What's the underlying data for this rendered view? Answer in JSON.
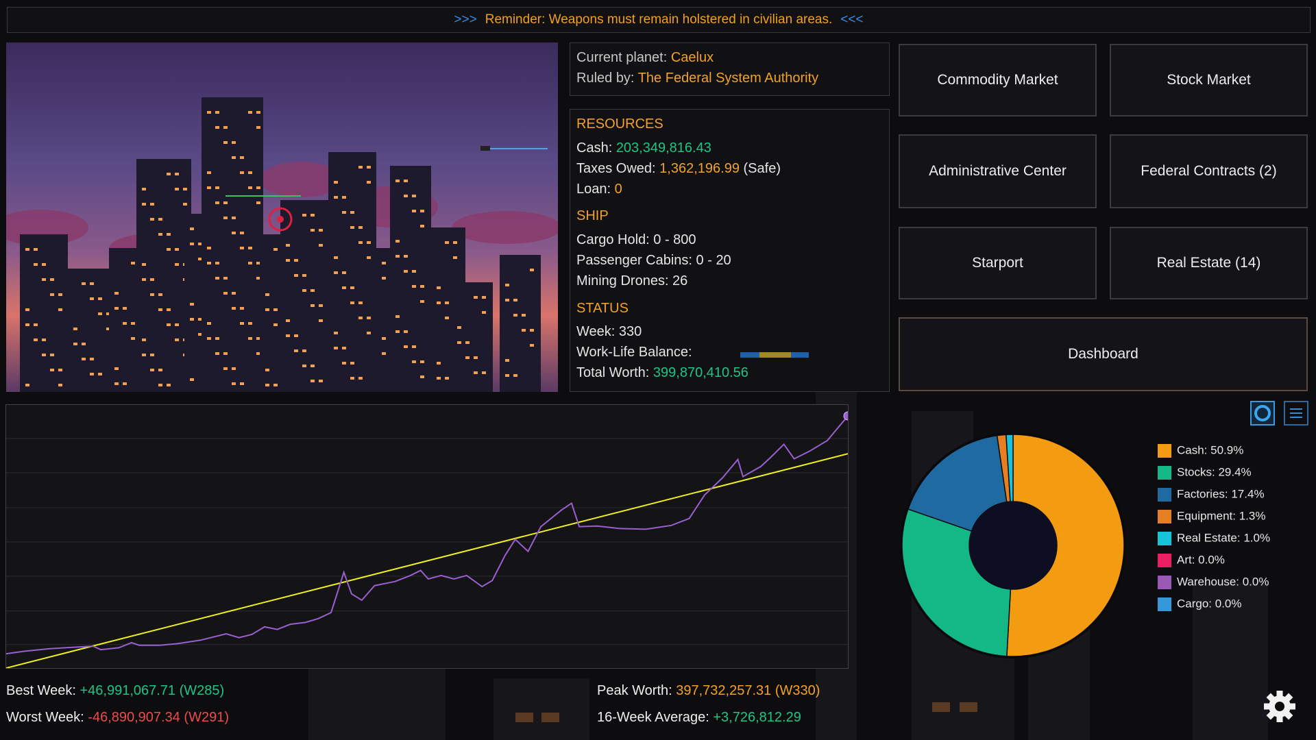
{
  "banner": {
    "prefix": ">>>",
    "text": "Reminder: Weapons must remain holstered in civilian areas.",
    "suffix": "<<<"
  },
  "planet": {
    "label": "Current planet:",
    "value": "Caelux",
    "ruler_label": "Ruled by:",
    "ruler": "The Federal System Authority"
  },
  "resources": {
    "heading": "RESOURCES",
    "cash_label": "Cash:",
    "cash": "203,349,816.43",
    "taxes_label": "Taxes Owed:",
    "taxes": "1,362,196.99",
    "taxes_note": "(Safe)",
    "loan_label": "Loan:",
    "loan": "0"
  },
  "ship": {
    "heading": "SHIP",
    "lines": [
      "Cargo Hold: 0 - 800",
      "Passenger Cabins: 0 - 20",
      "Mining Drones: 26"
    ]
  },
  "status": {
    "heading": "STATUS",
    "week": "Week: 330",
    "balance_label": "Work-Life Balance:",
    "worth_label": "Total Worth:",
    "worth": "399,870,410.56"
  },
  "buttons": [
    "Commodity Market",
    "Stock Market",
    "Administrative Center",
    "Federal Contracts (2)",
    "Starport",
    "Real Estate (14)"
  ],
  "dashboard": "Dashboard",
  "stats": {
    "best_label": "Best Week:",
    "best": "+46,991,067.71 (W285)",
    "worst_label": "Worst Week:",
    "worst": "-46,890,907.34 (W291)",
    "peak_label": "Peak Worth:",
    "peak": "397,732,257.31 (W330)",
    "avg_label": "16-Week Average:",
    "avg": "+3,726,812.29"
  },
  "chart_data": [
    {
      "type": "line",
      "x": [
        1,
        8,
        18,
        28,
        35,
        38,
        45,
        50,
        53,
        61,
        68,
        77,
        87,
        92,
        97,
        102,
        107,
        112,
        118,
        123,
        128,
        133,
        136,
        140,
        145,
        153,
        159,
        163,
        166,
        171,
        176,
        181,
        187,
        191,
        196,
        200,
        205,
        210,
        218,
        222,
        225,
        232,
        241,
        251,
        261,
        268,
        274,
        281,
        287,
        289,
        296,
        300,
        305,
        309,
        315,
        322,
        330
      ],
      "xlim": [
        1,
        330
      ],
      "ylim": [
        0,
        415
      ],
      "yticks": [
        37,
        90,
        145,
        199,
        253,
        308,
        362
      ],
      "grid": true,
      "series": [
        {
          "color": "#9a5fd0",
          "values": [
            22.5,
            26.5,
            30.5,
            33,
            34.5,
            29,
            32,
            40,
            36,
            36,
            38.5,
            44,
            54,
            48,
            53,
            65,
            61,
            69,
            72,
            78,
            87.5,
            151,
            117,
            107,
            130,
            136.5,
            146,
            154,
            140.5,
            146,
            140.5,
            146,
            128.5,
            138,
            177.6,
            203,
            184,
            223,
            249,
            260,
            223,
            224,
            220,
            219,
            225,
            236,
            273,
            300,
            329,
            302,
            318,
            333,
            353,
            330,
            342,
            359,
            397.7
          ]
        }
      ],
      "trend": {
        "color": "#f0f020",
        "x": [
          1,
          330
        ],
        "values": [
          0,
          338
        ]
      }
    },
    {
      "type": "pie",
      "donut": true,
      "categories": [
        "Cash: 50.9%",
        "Stocks: 29.4%",
        "Factories: 17.4%",
        "Equipment: 1.3%",
        "Real Estate: 1.0%",
        "Art: 0.0%",
        "Warehouse: 0.0%",
        "Cargo: 0.0%"
      ],
      "values": [
        50.9,
        29.4,
        17.4,
        1.3,
        1.0,
        0.0,
        0.0,
        0.0
      ],
      "colors": [
        "#f39c12",
        "#14b886",
        "#1f6aa0",
        "#e67e22",
        "#16c3d8",
        "#e91e63",
        "#9b59b6",
        "#3498db"
      ]
    }
  ]
}
